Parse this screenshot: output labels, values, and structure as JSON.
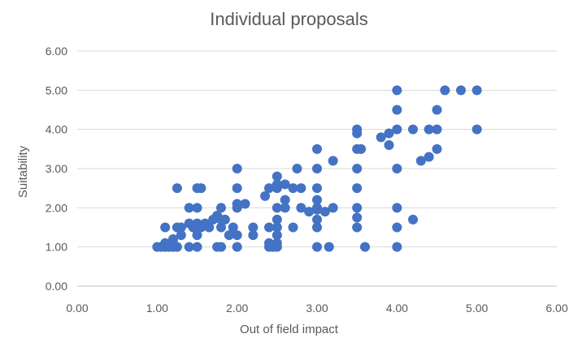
{
  "chart_data": {
    "type": "scatter",
    "title": "Individual proposals",
    "xlabel": "Out of field impact",
    "ylabel": "Suitability",
    "xlim": [
      0,
      6
    ],
    "ylim": [
      0,
      6
    ],
    "x_ticks": [
      "0.00",
      "1.00",
      "2.00",
      "3.00",
      "4.00",
      "5.00",
      "6.00"
    ],
    "y_ticks": [
      "0.00",
      "1.00",
      "2.00",
      "3.00",
      "4.00",
      "5.00",
      "6.00"
    ],
    "grid": "horizontal",
    "legend": "none",
    "marker_color": "#4472c4",
    "points": [
      [
        1.0,
        1.0
      ],
      [
        1.05,
        1.0
      ],
      [
        1.1,
        1.0
      ],
      [
        1.15,
        1.0
      ],
      [
        1.2,
        1.0
      ],
      [
        1.25,
        1.0
      ],
      [
        1.4,
        1.0
      ],
      [
        1.5,
        1.0
      ],
      [
        1.75,
        1.0
      ],
      [
        1.8,
        1.0
      ],
      [
        2.0,
        1.0
      ],
      [
        2.4,
        1.0
      ],
      [
        2.45,
        1.0
      ],
      [
        2.5,
        1.0
      ],
      [
        3.0,
        1.0
      ],
      [
        3.15,
        1.0
      ],
      [
        3.6,
        1.0
      ],
      [
        4.0,
        1.0
      ],
      [
        1.1,
        1.1
      ],
      [
        1.2,
        1.1
      ],
      [
        2.4,
        1.1
      ],
      [
        2.5,
        1.1
      ],
      [
        1.2,
        1.2
      ],
      [
        1.3,
        1.3
      ],
      [
        1.5,
        1.3
      ],
      [
        1.9,
        1.3
      ],
      [
        2.0,
        1.3
      ],
      [
        2.2,
        1.3
      ],
      [
        2.5,
        1.3
      ],
      [
        1.1,
        1.5
      ],
      [
        1.25,
        1.5
      ],
      [
        1.3,
        1.5
      ],
      [
        1.45,
        1.5
      ],
      [
        1.55,
        1.5
      ],
      [
        1.65,
        1.5
      ],
      [
        1.8,
        1.5
      ],
      [
        1.95,
        1.5
      ],
      [
        2.2,
        1.5
      ],
      [
        2.4,
        1.5
      ],
      [
        2.5,
        1.5
      ],
      [
        2.7,
        1.5
      ],
      [
        3.0,
        1.5
      ],
      [
        3.5,
        1.5
      ],
      [
        4.0,
        1.5
      ],
      [
        1.4,
        1.6
      ],
      [
        1.5,
        1.6
      ],
      [
        1.6,
        1.6
      ],
      [
        1.7,
        1.7
      ],
      [
        1.8,
        1.7
      ],
      [
        1.85,
        1.7
      ],
      [
        2.5,
        1.7
      ],
      [
        3.0,
        1.7
      ],
      [
        4.2,
        1.7
      ],
      [
        3.5,
        1.75
      ],
      [
        1.75,
        1.8
      ],
      [
        2.9,
        1.9
      ],
      [
        3.1,
        1.9
      ],
      [
        3.0,
        1.95
      ],
      [
        1.4,
        2.0
      ],
      [
        1.5,
        2.0
      ],
      [
        1.8,
        2.0
      ],
      [
        2.0,
        2.0
      ],
      [
        2.1,
        2.1
      ],
      [
        2.5,
        2.0
      ],
      [
        2.6,
        2.0
      ],
      [
        2.8,
        2.0
      ],
      [
        3.0,
        2.0
      ],
      [
        3.2,
        2.0
      ],
      [
        3.5,
        2.0
      ],
      [
        4.0,
        2.0
      ],
      [
        2.0,
        2.1
      ],
      [
        2.35,
        2.3
      ],
      [
        2.6,
        2.2
      ],
      [
        3.0,
        2.2
      ],
      [
        1.25,
        2.5
      ],
      [
        1.5,
        2.5
      ],
      [
        1.55,
        2.5
      ],
      [
        2.0,
        2.5
      ],
      [
        2.4,
        2.5
      ],
      [
        2.5,
        2.5
      ],
      [
        2.7,
        2.5
      ],
      [
        2.8,
        2.5
      ],
      [
        3.0,
        2.5
      ],
      [
        3.5,
        2.5
      ],
      [
        2.5,
        2.6
      ],
      [
        2.6,
        2.6
      ],
      [
        2.5,
        2.8
      ],
      [
        2.0,
        3.0
      ],
      [
        2.75,
        3.0
      ],
      [
        3.0,
        3.0
      ],
      [
        3.5,
        3.0
      ],
      [
        4.0,
        3.0
      ],
      [
        3.2,
        3.2
      ],
      [
        4.3,
        3.2
      ],
      [
        4.4,
        3.3
      ],
      [
        3.0,
        3.5
      ],
      [
        3.5,
        3.5
      ],
      [
        3.55,
        3.5
      ],
      [
        4.5,
        3.5
      ],
      [
        3.9,
        3.6
      ],
      [
        3.8,
        3.8
      ],
      [
        3.9,
        3.9
      ],
      [
        3.5,
        3.9
      ],
      [
        3.5,
        4.0
      ],
      [
        4.0,
        4.0
      ],
      [
        4.2,
        4.0
      ],
      [
        4.4,
        4.0
      ],
      [
        4.5,
        4.0
      ],
      [
        5.0,
        4.0
      ],
      [
        4.0,
        4.5
      ],
      [
        4.5,
        4.5
      ],
      [
        4.0,
        5.0
      ],
      [
        4.6,
        5.0
      ],
      [
        4.8,
        5.0
      ],
      [
        5.0,
        5.0
      ]
    ]
  }
}
